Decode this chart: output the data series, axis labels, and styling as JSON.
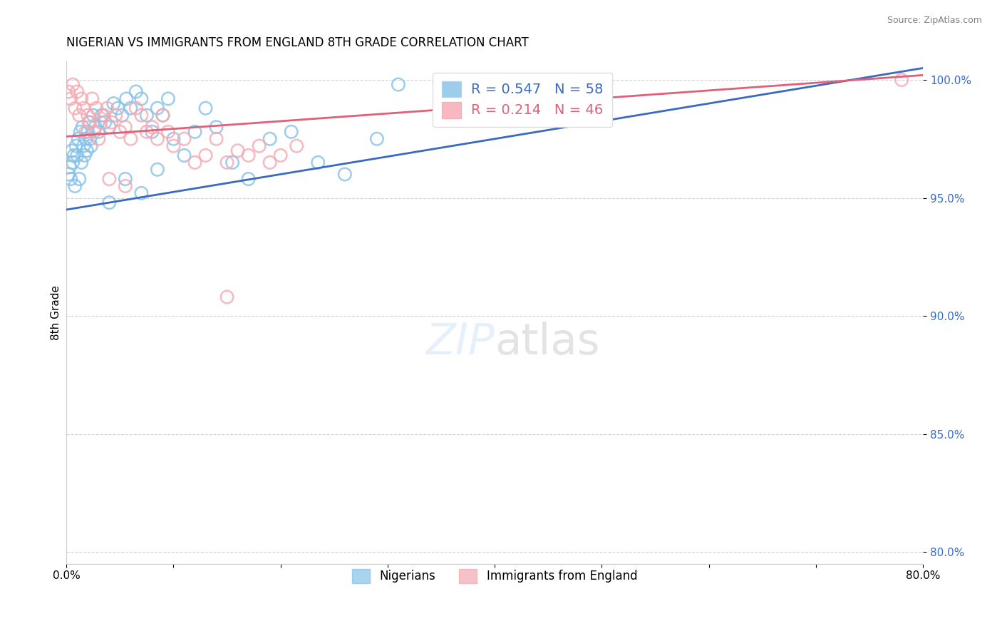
{
  "title": "NIGERIAN VS IMMIGRANTS FROM ENGLAND 8TH GRADE CORRELATION CHART",
  "source_text": "Source: ZipAtlas.com",
  "ylabel": "8th Grade",
  "xmin": 0.0,
  "xmax": 0.8,
  "ymin": 0.795,
  "ymax": 1.008,
  "yticks": [
    0.8,
    0.85,
    0.9,
    0.95,
    1.0
  ],
  "ytick_labels": [
    "80.0%",
    "85.0%",
    "90.0%",
    "95.0%",
    "100.0%"
  ],
  "xticks": [
    0.0,
    0.1,
    0.2,
    0.3,
    0.4,
    0.5,
    0.6,
    0.7,
    0.8
  ],
  "xtick_labels": [
    "0.0%",
    "",
    "",
    "",
    "",
    "",
    "",
    "",
    "80.0%"
  ],
  "blue_R": 0.547,
  "blue_N": 58,
  "pink_R": 0.214,
  "pink_N": 46,
  "blue_color": "#85c1e8",
  "pink_color": "#f5a8b0",
  "blue_line_color": "#3a6abf",
  "pink_line_color": "#e0607a",
  "legend_label_blue": "Nigerians",
  "legend_label_pink": "Immigrants from England",
  "blue_points_x": [
    0.002,
    0.003,
    0.004,
    0.005,
    0.006,
    0.007,
    0.008,
    0.009,
    0.01,
    0.011,
    0.012,
    0.013,
    0.014,
    0.015,
    0.016,
    0.017,
    0.018,
    0.019,
    0.02,
    0.021,
    0.022,
    0.023,
    0.025,
    0.027,
    0.03,
    0.033,
    0.036,
    0.04,
    0.044,
    0.048,
    0.052,
    0.056,
    0.06,
    0.065,
    0.07,
    0.075,
    0.08,
    0.085,
    0.09,
    0.095,
    0.1,
    0.11,
    0.12,
    0.13,
    0.14,
    0.155,
    0.17,
    0.19,
    0.21,
    0.235,
    0.26,
    0.29,
    0.04,
    0.055,
    0.07,
    0.085,
    0.31,
    0.38
  ],
  "blue_points_y": [
    0.96,
    0.963,
    0.958,
    0.97,
    0.965,
    0.968,
    0.955,
    0.972,
    0.968,
    0.975,
    0.958,
    0.978,
    0.965,
    0.98,
    0.972,
    0.968,
    0.975,
    0.97,
    0.978,
    0.982,
    0.975,
    0.972,
    0.985,
    0.98,
    0.978,
    0.985,
    0.982,
    0.98,
    0.99,
    0.988,
    0.985,
    0.992,
    0.988,
    0.995,
    0.992,
    0.985,
    0.978,
    0.988,
    0.985,
    0.992,
    0.975,
    0.968,
    0.978,
    0.988,
    0.98,
    0.965,
    0.958,
    0.975,
    0.978,
    0.965,
    0.96,
    0.975,
    0.948,
    0.958,
    0.952,
    0.962,
    0.998,
    0.998
  ],
  "pink_points_x": [
    0.002,
    0.004,
    0.006,
    0.008,
    0.01,
    0.012,
    0.014,
    0.016,
    0.018,
    0.02,
    0.022,
    0.024,
    0.026,
    0.028,
    0.03,
    0.032,
    0.035,
    0.038,
    0.042,
    0.046,
    0.05,
    0.055,
    0.06,
    0.065,
    0.07,
    0.075,
    0.08,
    0.085,
    0.09,
    0.095,
    0.1,
    0.11,
    0.12,
    0.13,
    0.14,
    0.15,
    0.16,
    0.17,
    0.18,
    0.19,
    0.2,
    0.215,
    0.04,
    0.055,
    0.15,
    0.78
  ],
  "pink_points_y": [
    0.995,
    0.992,
    0.998,
    0.988,
    0.995,
    0.985,
    0.992,
    0.988,
    0.978,
    0.985,
    0.982,
    0.992,
    0.978,
    0.988,
    0.975,
    0.982,
    0.985,
    0.988,
    0.982,
    0.985,
    0.978,
    0.98,
    0.975,
    0.988,
    0.985,
    0.978,
    0.98,
    0.975,
    0.985,
    0.978,
    0.972,
    0.975,
    0.965,
    0.968,
    0.975,
    0.965,
    0.97,
    0.968,
    0.972,
    0.965,
    0.968,
    0.972,
    0.958,
    0.955,
    0.908,
    1.0
  ],
  "blue_trend_x": [
    0.0,
    0.8
  ],
  "blue_trend_y": [
    0.945,
    1.005
  ],
  "pink_trend_x": [
    0.0,
    0.8
  ],
  "pink_trend_y": [
    0.976,
    1.002
  ]
}
